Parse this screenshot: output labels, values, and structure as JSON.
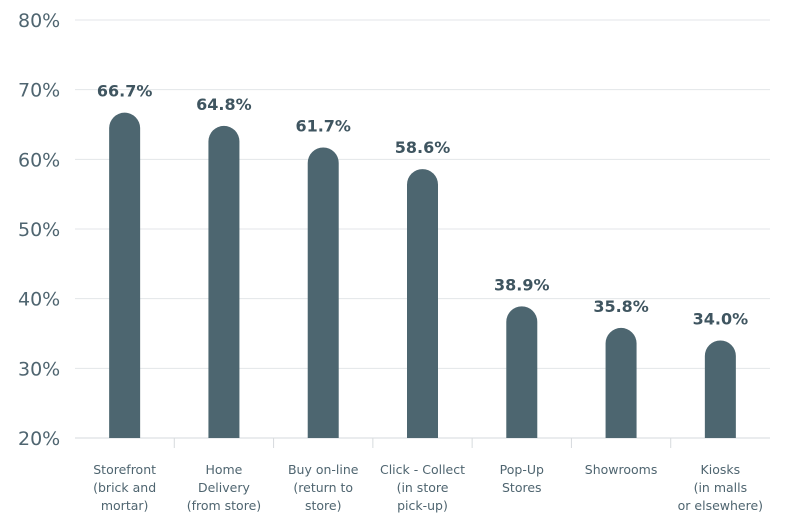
{
  "chart_data": {
    "type": "bar",
    "categories": [
      [
        "Storefront",
        "(brick and",
        "mortar)"
      ],
      [
        "Home",
        "Delivery",
        "(from store)"
      ],
      [
        "Buy on-line",
        "(return to",
        "store)"
      ],
      [
        "Click - Collect",
        "(in store",
        "pick-up)"
      ],
      [
        "Pop-Up",
        "Stores"
      ],
      [
        "Showrooms"
      ],
      [
        "Kiosks",
        "(in malls",
        "or elsewhere)"
      ]
    ],
    "values": [
      66.7,
      64.8,
      61.7,
      58.6,
      38.9,
      35.8,
      34.0
    ],
    "value_labels": [
      "66.7%",
      "64.8%",
      "61.7%",
      "58.6%",
      "38.9%",
      "35.8%",
      "34.0%"
    ],
    "ylim": [
      20,
      80
    ],
    "yticks": [
      20,
      30,
      40,
      50,
      60,
      70,
      80
    ],
    "ytick_labels": [
      "20%",
      "30%",
      "40%",
      "50%",
      "60%",
      "70%",
      "80%"
    ],
    "title": "",
    "xlabel": "",
    "ylabel": "",
    "grid": true,
    "colors": {
      "bar": "#4d6670",
      "grid": "#e3e6e8",
      "axis": "#d6dadd",
      "text": "#4f6570"
    }
  }
}
